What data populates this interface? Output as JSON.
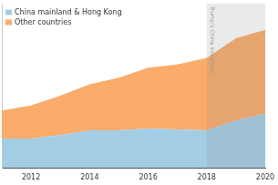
{
  "chart_data": {
    "type": "area",
    "x": [
      2011,
      2012,
      2013,
      2014,
      2015,
      2016,
      2017,
      2018,
      2019,
      2020
    ],
    "series": [
      {
        "name": "China mainland & Hong Kong",
        "color": "#a3cde4",
        "values": [
          18,
          18,
          20,
          23,
          23,
          24,
          23.5,
          23,
          29,
          33
        ]
      },
      {
        "name": "Other countries",
        "color": "#fbab6a",
        "values": [
          17,
          20,
          24,
          28,
          32,
          37,
          39.5,
          44,
          50,
          51
        ]
      }
    ],
    "stacked": true,
    "xlim": [
      2011,
      2020
    ],
    "xticks": [
      2012,
      2014,
      2016,
      2018,
      2020
    ],
    "ylim": [
      0,
      100
    ],
    "tick_labels": "x",
    "grid": false,
    "legend": "upper left",
    "annotations": [
      {
        "text": "Trump's China initiatives",
        "x_start": 2018,
        "x_end": 2020
      }
    ]
  }
}
